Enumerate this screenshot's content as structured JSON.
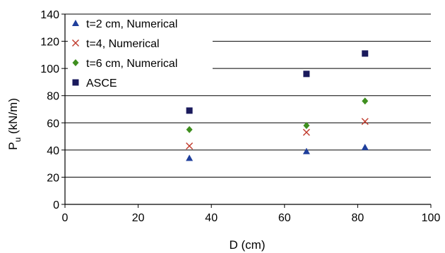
{
  "chart_data": {
    "type": "scatter",
    "xlabel": "D (cm)",
    "ylabel_main": "P",
    "ylabel_sub": "u",
    "ylabel_unit": " (kN/m)",
    "xlim": [
      0,
      100
    ],
    "ylim": [
      0,
      140
    ],
    "xticks": [
      0,
      20,
      40,
      60,
      80,
      100
    ],
    "yticks": [
      0,
      20,
      40,
      60,
      80,
      100,
      120,
      140
    ],
    "grid": "horizontal",
    "legend_position": "top-left",
    "series": [
      {
        "name": "t=2 cm, Numerical",
        "marker": "triangle",
        "color": "#1f3f9c",
        "x": [
          34,
          66,
          82
        ],
        "y": [
          34,
          39,
          42
        ]
      },
      {
        "name": "t=4, Numerical",
        "marker": "x",
        "color": "#c0392b",
        "x": [
          34,
          66,
          82
        ],
        "y": [
          43,
          53,
          61
        ]
      },
      {
        "name": "t=6 cm, Numerical",
        "marker": "diamond",
        "color": "#3f8f1f",
        "x": [
          34,
          66,
          82
        ],
        "y": [
          55,
          58,
          76
        ]
      },
      {
        "name": "ASCE",
        "marker": "square",
        "color": "#1a1a5c",
        "x": [
          34,
          66,
          82
        ],
        "y": [
          69,
          96,
          111
        ]
      }
    ]
  }
}
